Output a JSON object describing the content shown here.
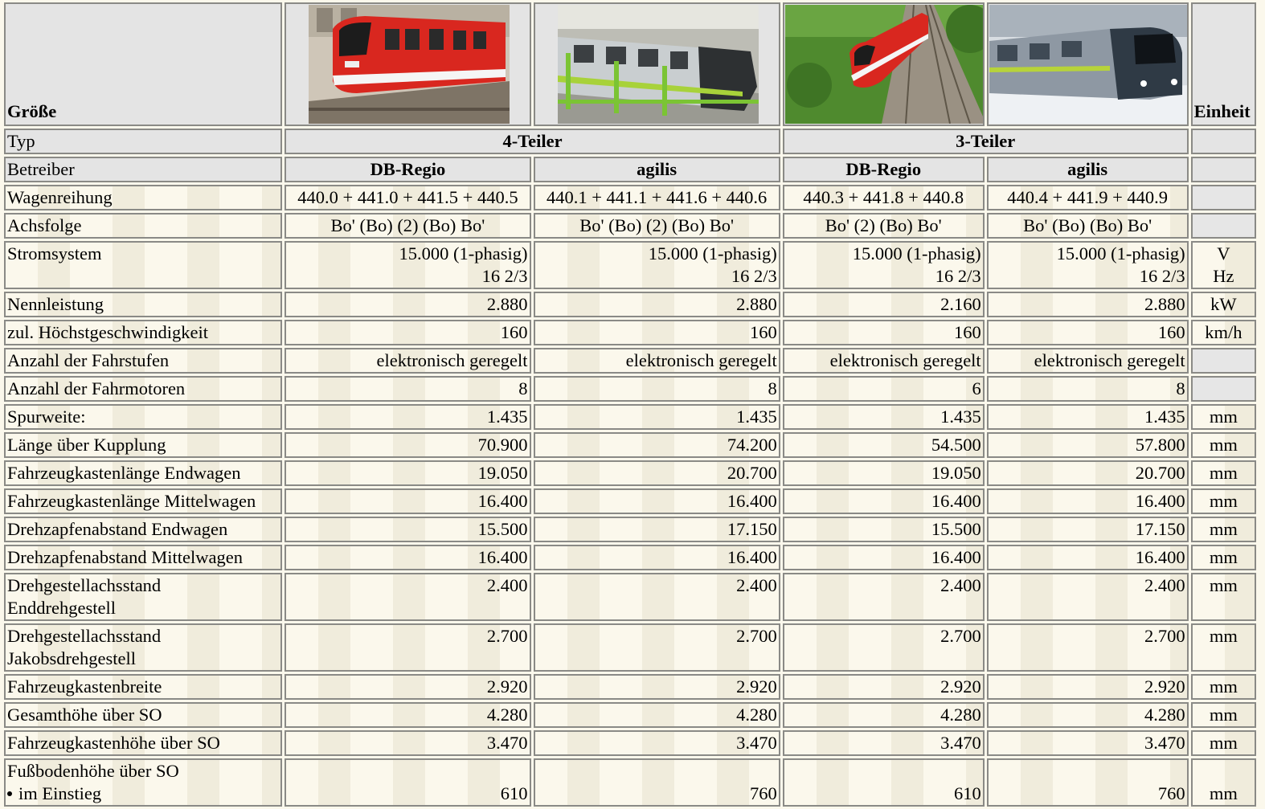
{
  "header": {
    "col0": "Größe",
    "unit": "Einheit",
    "images": [
      {
        "name": "photo-db-4teiler",
        "desc_colors": {
          "body": "#d9271f",
          "stripe": "#ffffff"
        }
      },
      {
        "name": "photo-agilis-4teiler",
        "desc_colors": {
          "body": "#c8cfcf",
          "accent": "#a8d23a"
        }
      },
      {
        "name": "photo-db-3teiler",
        "desc_colors": {
          "body": "#d9271f",
          "trees": "#4f8a2e"
        }
      },
      {
        "name": "photo-agilis-3teiler",
        "desc_colors": {
          "body": "#8e98a3",
          "snow": "#e8ecf0"
        }
      }
    ]
  },
  "typ": {
    "label": "Typ",
    "four": "4-Teiler",
    "three": "3-Teiler"
  },
  "betreiber": {
    "label": "Betreiber",
    "cols": [
      "DB-Regio",
      "agilis",
      "DB-Regio",
      "agilis"
    ]
  },
  "rows": [
    {
      "label": "Wagenreihung",
      "align": "ctr",
      "vals": [
        "440.0 + 441.0 + 441.5 + 440.5",
        "440.1 + 441.1 + 441.6 + 440.6",
        "440.3 + 441.8 + 440.8",
        "440.4 + 441.9 + 440.9"
      ],
      "unit": "",
      "grayUnit": true
    },
    {
      "label": "Achsfolge",
      "align": "ctr",
      "vals": [
        "Bo' (Bo) (2) (Bo) Bo'",
        "Bo' (Bo) (2) (Bo) Bo'",
        "Bo' (2) (Bo) Bo'",
        "Bo' (Bo) (Bo) Bo'"
      ],
      "unit": "",
      "grayUnit": true
    }
  ],
  "strom": {
    "label": "Stromsystem",
    "v1": "15.000 (1-phasig)",
    "v2": "16 2/3",
    "unit1": "V",
    "unit2": "Hz"
  },
  "rows2": [
    {
      "label": "Nennleistung",
      "vals": [
        "2.880",
        "2.880",
        "2.160",
        "2.880"
      ],
      "unit": "kW"
    },
    {
      "label": "zul. Höchstgeschwindigkeit",
      "vals": [
        "160",
        "160",
        "160",
        "160"
      ],
      "unit": "km/h"
    },
    {
      "label": "Anzahl der Fahrstufen",
      "vals": [
        "elektronisch geregelt",
        "elektronisch geregelt",
        "elektronisch geregelt",
        "elektronisch geregelt"
      ],
      "unit": "",
      "grayUnit": true
    },
    {
      "label": "Anzahl der Fahrmotoren",
      "vals": [
        "8",
        "8",
        "6",
        "8"
      ],
      "unit": "",
      "grayUnit": true
    },
    {
      "label": "Spurweite:",
      "vals": [
        "1.435",
        "1.435",
        "1.435",
        "1.435"
      ],
      "unit": "mm"
    },
    {
      "label": "Länge über Kupplung",
      "vals": [
        "70.900",
        "74.200",
        "54.500",
        "57.800"
      ],
      "unit": "mm"
    },
    {
      "label": "Fahrzeugkastenlänge Endwagen",
      "vals": [
        "19.050",
        "20.700",
        "19.050",
        "20.700"
      ],
      "unit": "mm"
    },
    {
      "label": "Fahrzeugkastenlänge Mittelwagen",
      "vals": [
        "16.400",
        "16.400",
        "16.400",
        "16.400"
      ],
      "unit": "mm"
    },
    {
      "label": "Drehzapfenabstand Endwagen",
      "vals": [
        "15.500",
        "17.150",
        "15.500",
        "17.150"
      ],
      "unit": "mm"
    },
    {
      "label": "Drehzapfenabstand Mittelwagen",
      "vals": [
        "16.400",
        "16.400",
        "16.400",
        "16.400"
      ],
      "unit": "mm"
    }
  ],
  "rows3": [
    {
      "label1": "Drehgestellachsstand",
      "label2": "Enddrehgestell",
      "vals": [
        "2.400",
        "2.400",
        "2.400",
        "2.400"
      ],
      "unit": "mm"
    },
    {
      "label1": "Drehgestellachsstand",
      "label2": "Jakobsdrehgestell",
      "vals": [
        "2.700",
        "2.700",
        "2.700",
        "2.700"
      ],
      "unit": "mm"
    }
  ],
  "rows4": [
    {
      "label": "Fahrzeugkastenbreite",
      "vals": [
        "2.920",
        "2.920",
        "2.920",
        "2.920"
      ],
      "unit": "mm"
    },
    {
      "label": "Gesamthöhe über SO",
      "vals": [
        "4.280",
        "4.280",
        "4.280",
        "4.280"
      ],
      "unit": "mm"
    },
    {
      "label": "Fahrzeugkastenhöhe über SO",
      "vals": [
        "3.470",
        "3.470",
        "3.470",
        "3.470"
      ],
      "unit": "mm"
    }
  ],
  "fussboden": {
    "label": "Fußbodenhöhe über SO",
    "sub": "im Einstieg",
    "vals": [
      "610",
      "760",
      "610",
      "760"
    ],
    "unit": "mm"
  }
}
